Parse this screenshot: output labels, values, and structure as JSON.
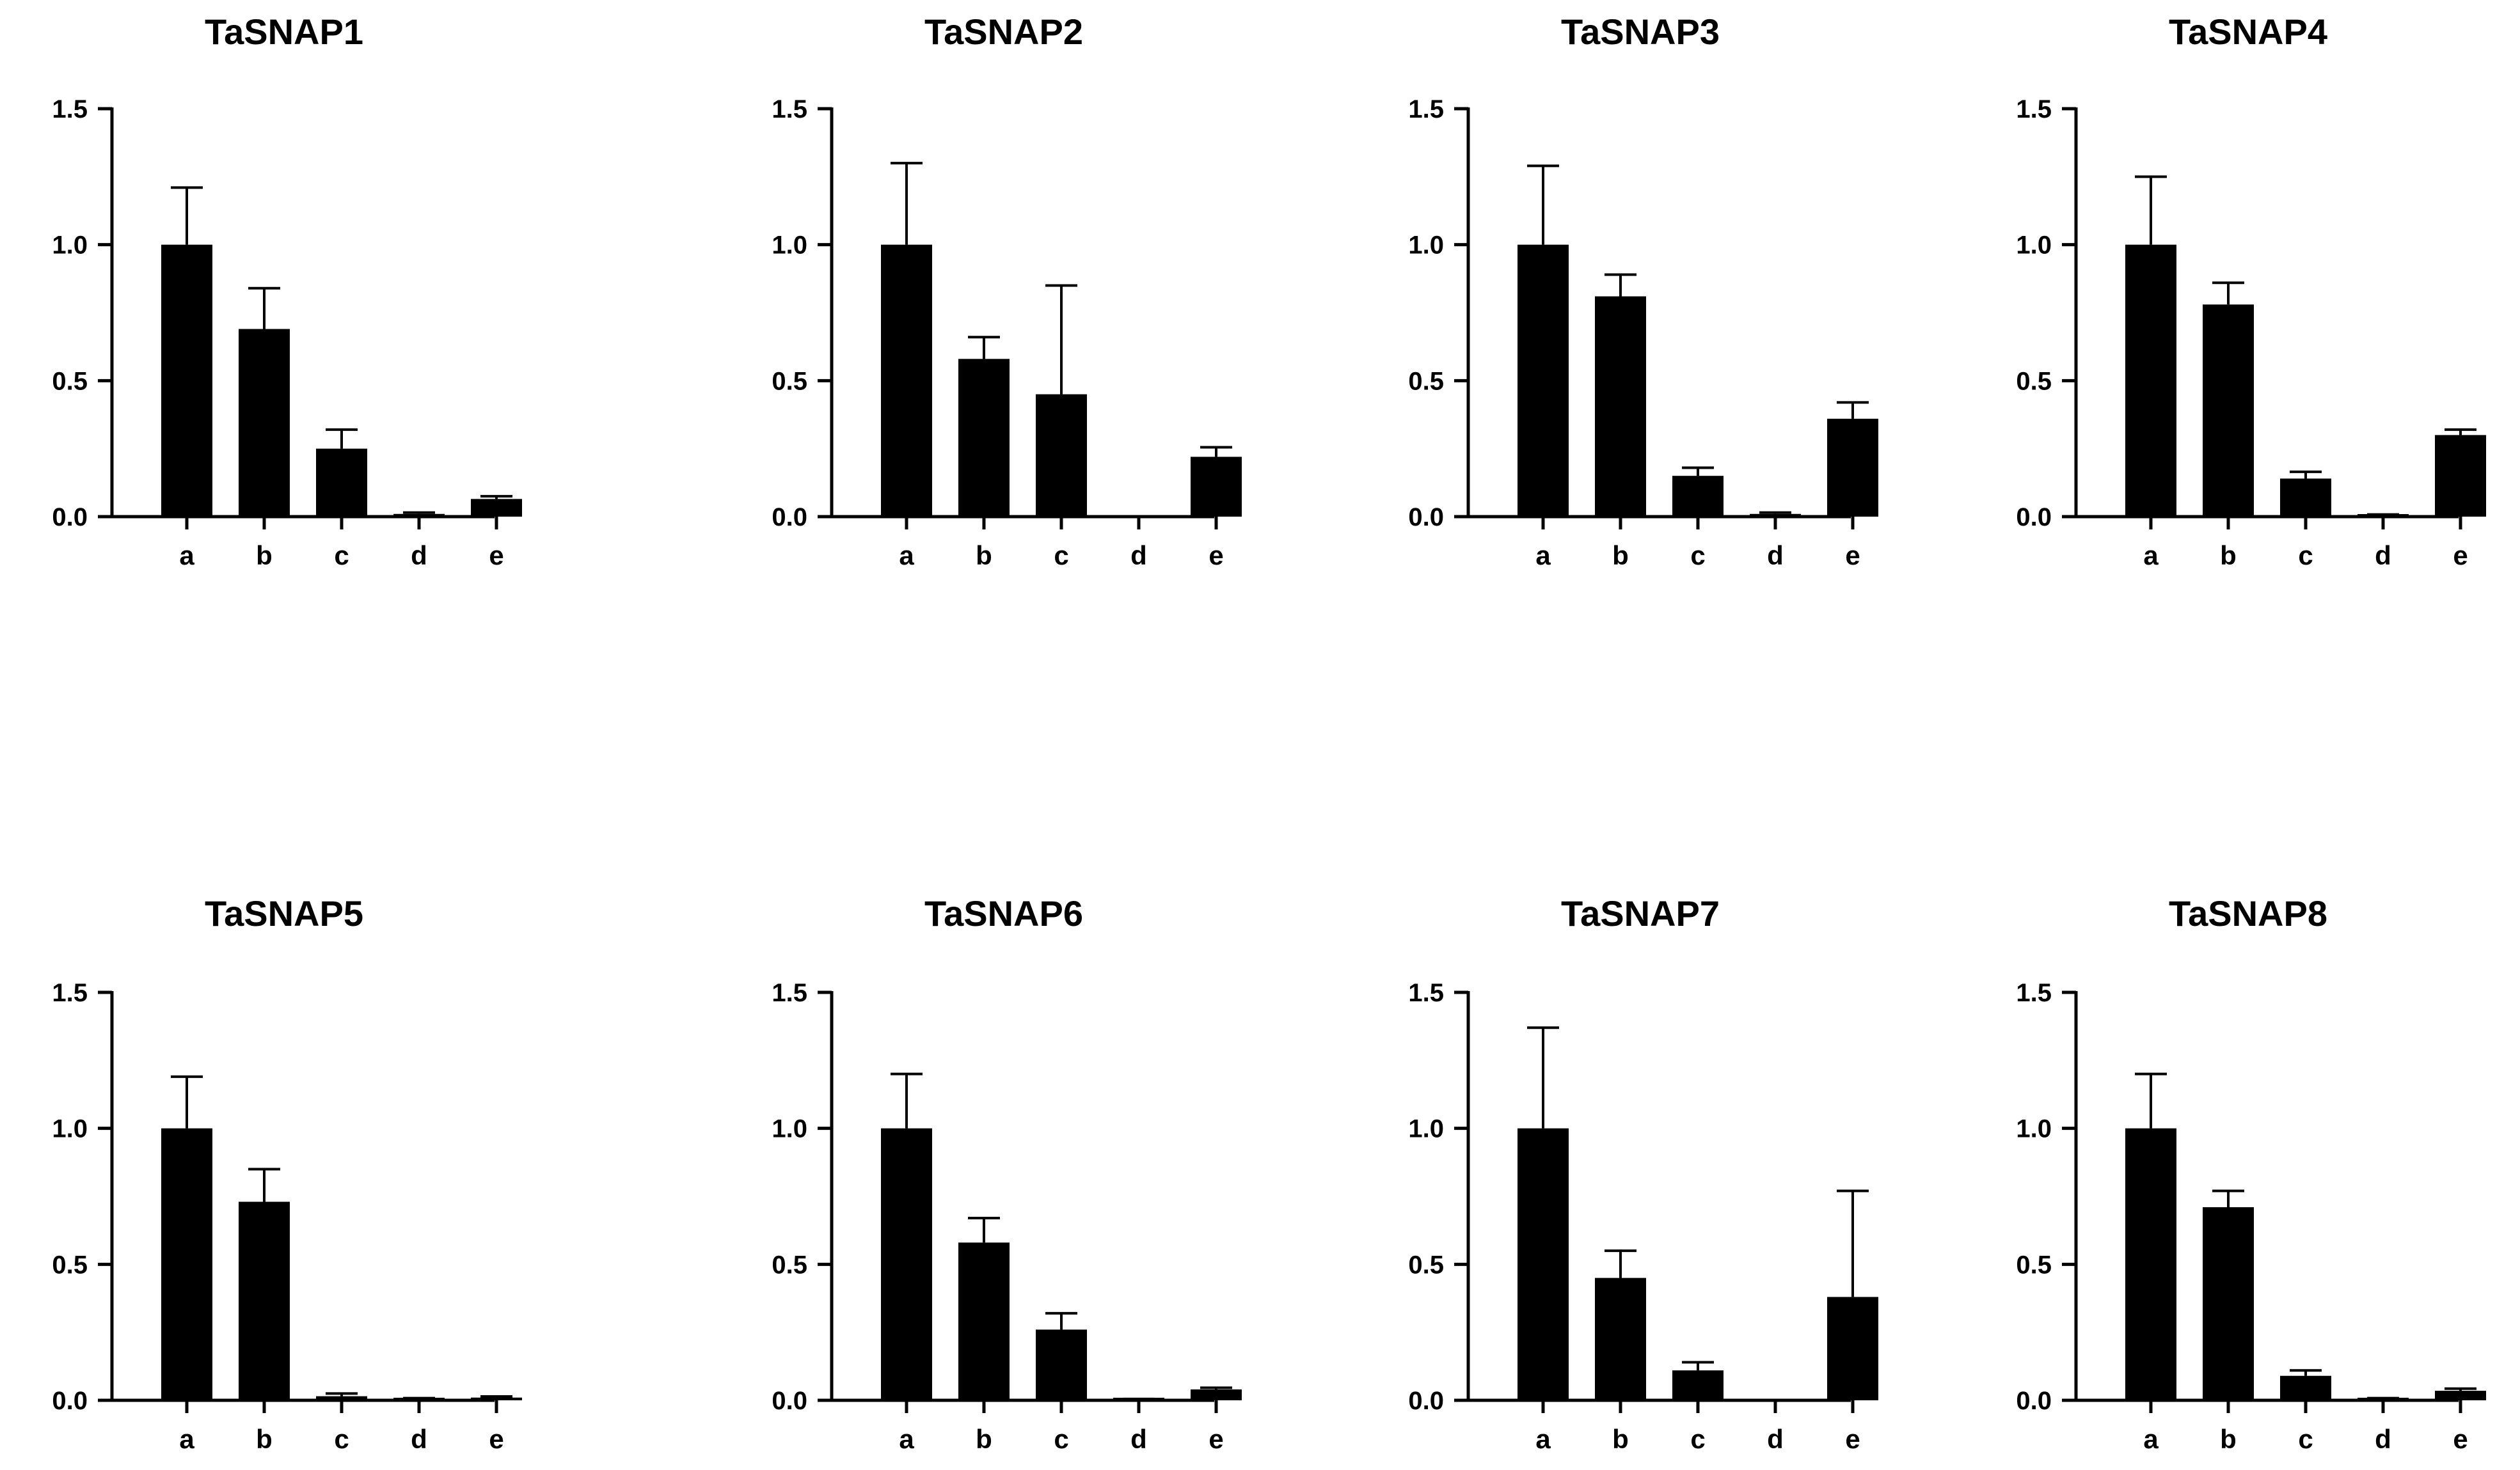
{
  "chart_data": [
    {
      "type": "bar",
      "title": "TaSNAP1",
      "categories": [
        "a",
        "b",
        "c",
        "d",
        "e"
      ],
      "values": [
        1.0,
        0.69,
        0.25,
        0.01,
        0.065
      ],
      "errors": [
        0.21,
        0.15,
        0.07,
        0.005,
        0.01
      ],
      "yticks": [
        "0.0",
        "0.5",
        "1.0",
        "1.5"
      ],
      "ylim": [
        0,
        1.5
      ],
      "xlabel": "",
      "ylabel": ""
    },
    {
      "type": "bar",
      "title": "TaSNAP2",
      "categories": [
        "a",
        "b",
        "c",
        "d",
        "e"
      ],
      "values": [
        1.0,
        0.58,
        0.45,
        0.0,
        0.22
      ],
      "errors": [
        0.3,
        0.08,
        0.4,
        0.0,
        0.035
      ],
      "yticks": [
        "0.0",
        "0.5",
        "1.0",
        "1.5"
      ],
      "ylim": [
        0,
        1.5
      ],
      "xlabel": "",
      "ylabel": ""
    },
    {
      "type": "bar",
      "title": "TaSNAP3",
      "categories": [
        "a",
        "b",
        "c",
        "d",
        "e"
      ],
      "values": [
        1.0,
        0.81,
        0.15,
        0.01,
        0.36
      ],
      "errors": [
        0.29,
        0.08,
        0.03,
        0.005,
        0.06
      ],
      "yticks": [
        "0.0",
        "0.5",
        "1.0",
        "1.5"
      ],
      "ylim": [
        0,
        1.5
      ],
      "xlabel": "",
      "ylabel": ""
    },
    {
      "type": "bar",
      "title": "TaSNAP4",
      "categories": [
        "a",
        "b",
        "c",
        "d",
        "e"
      ],
      "values": [
        1.0,
        0.78,
        0.14,
        0.005,
        0.3
      ],
      "errors": [
        0.25,
        0.08,
        0.025,
        0.003,
        0.02
      ],
      "yticks": [
        "0.0",
        "0.5",
        "1.0",
        "1.5"
      ],
      "ylim": [
        0,
        1.5
      ],
      "xlabel": "",
      "ylabel": ""
    },
    {
      "type": "bar",
      "title": "TaSNAP5",
      "categories": [
        "a",
        "b",
        "c",
        "d",
        "e"
      ],
      "values": [
        1.0,
        0.73,
        0.015,
        0.005,
        0.01
      ],
      "errors": [
        0.19,
        0.12,
        0.01,
        0.003,
        0.004
      ],
      "yticks": [
        "0.0",
        "0.5",
        "1.0",
        "1.5"
      ],
      "ylim": [
        0,
        1.5
      ],
      "xlabel": "",
      "ylabel": ""
    },
    {
      "type": "bar",
      "title": "TaSNAP6",
      "categories": [
        "a",
        "b",
        "c",
        "d",
        "e"
      ],
      "values": [
        1.0,
        0.58,
        0.26,
        0.003,
        0.04
      ],
      "errors": [
        0.2,
        0.09,
        0.06,
        0.002,
        0.006
      ],
      "yticks": [
        "0.0",
        "0.5",
        "1.0",
        "1.5"
      ],
      "ylim": [
        0,
        1.5
      ],
      "xlabel": "",
      "ylabel": ""
    },
    {
      "type": "bar",
      "title": "TaSNAP7",
      "categories": [
        "a",
        "b",
        "c",
        "d",
        "e"
      ],
      "values": [
        1.0,
        0.45,
        0.11,
        0.0,
        0.38
      ],
      "errors": [
        0.37,
        0.1,
        0.03,
        0.0,
        0.39
      ],
      "yticks": [
        "0.0",
        "0.5",
        "1.0",
        "1.5"
      ],
      "ylim": [
        0,
        1.5
      ],
      "xlabel": "",
      "ylabel": ""
    },
    {
      "type": "bar",
      "title": "TaSNAP8",
      "categories": [
        "a",
        "b",
        "c",
        "d",
        "e"
      ],
      "values": [
        1.0,
        0.71,
        0.09,
        0.005,
        0.035
      ],
      "errors": [
        0.2,
        0.06,
        0.02,
        0.003,
        0.008
      ],
      "yticks": [
        "0.0",
        "0.5",
        "1.0",
        "1.5"
      ],
      "ylim": [
        0,
        1.5
      ],
      "xlabel": "",
      "ylabel": ""
    }
  ],
  "colors": {
    "bar": "#000000",
    "axis": "#000000",
    "background": "#ffffff"
  }
}
